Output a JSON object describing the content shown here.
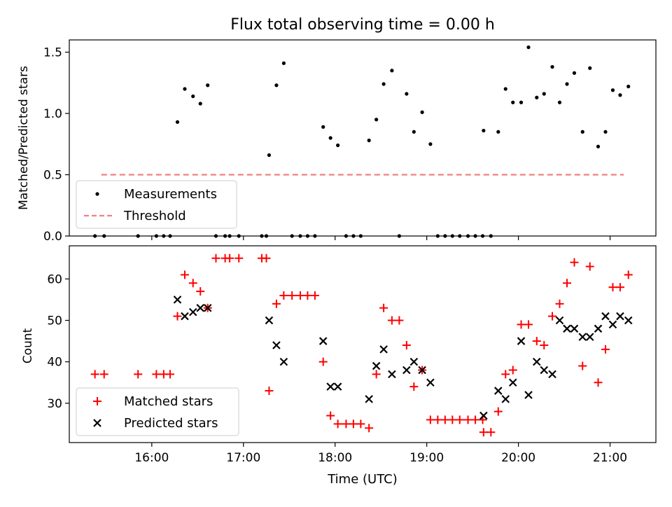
{
  "chart_data": {
    "title": "Flux total observing time = 0.00 h",
    "xlabel": "Time (UTC)",
    "x_unit": "hours UTC (decimal)",
    "xlim": [
      15.1,
      21.5
    ],
    "xticks": [
      {
        "value": 16,
        "label": "16:00"
      },
      {
        "value": 17,
        "label": "17:00"
      },
      {
        "value": 18,
        "label": "18:00"
      },
      {
        "value": 19,
        "label": "19:00"
      },
      {
        "value": 20,
        "label": "20:00"
      },
      {
        "value": 21,
        "label": "21:00"
      }
    ],
    "panels": [
      {
        "type": "scatter",
        "ylabel": "Matched/Predicted stars",
        "ylim": [
          0,
          1.6
        ],
        "yticks": [
          0,
          0.5,
          1.0,
          1.5
        ],
        "ytick_labels": [
          "0.0",
          "0.5",
          "1.0",
          "1.5"
        ],
        "legend": {
          "position": "lower-left",
          "entries": [
            {
              "label": "Measurements",
              "marker": "dot",
              "color": "#000000"
            },
            {
              "label": "Threshold",
              "marker": "dashed-line",
              "color": "#f08080"
            }
          ]
        },
        "threshold": {
          "value": 0.5,
          "x_start": 15.45,
          "x_end": 21.15,
          "color": "#f08080"
        },
        "series": [
          {
            "name": "Measurements",
            "color": "#000000",
            "points": [
              [
                15.38,
                0
              ],
              [
                15.48,
                0
              ],
              [
                15.85,
                0
              ],
              [
                16.05,
                0
              ],
              [
                16.13,
                0
              ],
              [
                16.2,
                0
              ],
              [
                16.28,
                0.93
              ],
              [
                16.36,
                1.2
              ],
              [
                16.45,
                1.14
              ],
              [
                16.53,
                1.08
              ],
              [
                16.61,
                1.23
              ],
              [
                16.7,
                0
              ],
              [
                16.8,
                0
              ],
              [
                16.85,
                0
              ],
              [
                16.95,
                0
              ],
              [
                17.2,
                0
              ],
              [
                17.25,
                0
              ],
              [
                17.28,
                0.66
              ],
              [
                17.36,
                1.23
              ],
              [
                17.44,
                1.41
              ],
              [
                17.53,
                0
              ],
              [
                17.62,
                0
              ],
              [
                17.7,
                0
              ],
              [
                17.78,
                0
              ],
              [
                17.87,
                0.89
              ],
              [
                17.95,
                0.8
              ],
              [
                18.03,
                0.74
              ],
              [
                18.12,
                0
              ],
              [
                18.2,
                0
              ],
              [
                18.28,
                0
              ],
              [
                18.37,
                0.78
              ],
              [
                18.45,
                0.95
              ],
              [
                18.53,
                1.24
              ],
              [
                18.62,
                1.35
              ],
              [
                18.7,
                0
              ],
              [
                18.78,
                1.16
              ],
              [
                18.86,
                0.85
              ],
              [
                18.95,
                1.01
              ],
              [
                19.04,
                0.75
              ],
              [
                19.12,
                0
              ],
              [
                19.2,
                0
              ],
              [
                19.28,
                0
              ],
              [
                19.36,
                0
              ],
              [
                19.45,
                0
              ],
              [
                19.53,
                0
              ],
              [
                19.61,
                0
              ],
              [
                19.62,
                0.86
              ],
              [
                19.7,
                0
              ],
              [
                19.78,
                0.85
              ],
              [
                19.86,
                1.2
              ],
              [
                19.94,
                1.09
              ],
              [
                20.03,
                1.09
              ],
              [
                20.11,
                1.54
              ],
              [
                20.2,
                1.13
              ],
              [
                20.28,
                1.16
              ],
              [
                20.37,
                1.38
              ],
              [
                20.45,
                1.09
              ],
              [
                20.53,
                1.24
              ],
              [
                20.61,
                1.33
              ],
              [
                20.7,
                0.85
              ],
              [
                20.78,
                1.37
              ],
              [
                20.87,
                0.73
              ],
              [
                20.95,
                0.85
              ],
              [
                21.03,
                1.19
              ],
              [
                21.11,
                1.15
              ],
              [
                21.2,
                1.22
              ]
            ]
          }
        ]
      },
      {
        "type": "scatter",
        "ylabel": "Count",
        "ylim": [
          20.5,
          68
        ],
        "yticks": [
          30,
          40,
          50,
          60
        ],
        "ytick_labels": [
          "30",
          "40",
          "50",
          "60"
        ],
        "legend": {
          "position": "lower-left",
          "entries": [
            {
              "label": "Matched stars",
              "marker": "plus",
              "color": "#ff0000"
            },
            {
              "label": "Predicted stars",
              "marker": "x",
              "color": "#000000"
            }
          ]
        },
        "series": [
          {
            "name": "Matched stars",
            "marker": "plus",
            "color": "#ff0000",
            "points": [
              [
                15.38,
                37
              ],
              [
                15.48,
                37
              ],
              [
                15.85,
                37
              ],
              [
                16.05,
                37
              ],
              [
                16.13,
                37
              ],
              [
                16.2,
                37
              ],
              [
                16.28,
                51
              ],
              [
                16.36,
                61
              ],
              [
                16.45,
                59
              ],
              [
                16.53,
                57
              ],
              [
                16.61,
                53
              ],
              [
                16.7,
                65
              ],
              [
                16.8,
                65
              ],
              [
                16.85,
                65
              ],
              [
                16.95,
                65
              ],
              [
                17.2,
                65
              ],
              [
                17.25,
                65
              ],
              [
                17.28,
                33
              ],
              [
                17.36,
                54
              ],
              [
                17.44,
                56
              ],
              [
                17.53,
                56
              ],
              [
                17.62,
                56
              ],
              [
                17.7,
                56
              ],
              [
                17.78,
                56
              ],
              [
                17.87,
                40
              ],
              [
                17.95,
                27
              ],
              [
                18.03,
                25
              ],
              [
                18.12,
                25
              ],
              [
                18.2,
                25
              ],
              [
                18.28,
                25
              ],
              [
                18.37,
                24
              ],
              [
                18.45,
                37
              ],
              [
                18.53,
                53
              ],
              [
                18.62,
                50
              ],
              [
                18.7,
                50
              ],
              [
                18.78,
                44
              ],
              [
                18.86,
                34
              ],
              [
                18.95,
                38
              ],
              [
                19.04,
                26
              ],
              [
                19.12,
                26
              ],
              [
                19.2,
                26
              ],
              [
                19.28,
                26
              ],
              [
                19.36,
                26
              ],
              [
                19.45,
                26
              ],
              [
                19.53,
                26
              ],
              [
                19.61,
                26
              ],
              [
                19.62,
                23
              ],
              [
                19.7,
                23
              ],
              [
                19.78,
                28
              ],
              [
                19.86,
                37
              ],
              [
                19.94,
                38
              ],
              [
                20.03,
                49
              ],
              [
                20.11,
                49
              ],
              [
                20.2,
                45
              ],
              [
                20.28,
                44
              ],
              [
                20.37,
                51
              ],
              [
                20.45,
                54
              ],
              [
                20.53,
                59
              ],
              [
                20.61,
                64
              ],
              [
                20.7,
                39
              ],
              [
                20.78,
                63
              ],
              [
                20.87,
                35
              ],
              [
                20.95,
                43
              ],
              [
                21.03,
                58
              ],
              [
                21.11,
                58
              ],
              [
                21.2,
                61
              ]
            ]
          },
          {
            "name": "Predicted stars",
            "marker": "x",
            "color": "#000000",
            "points": [
              [
                16.28,
                55
              ],
              [
                16.36,
                51
              ],
              [
                16.45,
                52
              ],
              [
                16.53,
                53
              ],
              [
                16.61,
                53
              ],
              [
                17.28,
                50
              ],
              [
                17.36,
                44
              ],
              [
                17.44,
                40
              ],
              [
                17.87,
                45
              ],
              [
                17.95,
                34
              ],
              [
                18.03,
                34
              ],
              [
                18.37,
                31
              ],
              [
                18.45,
                39
              ],
              [
                18.53,
                43
              ],
              [
                18.62,
                37
              ],
              [
                18.78,
                38
              ],
              [
                18.86,
                40
              ],
              [
                18.95,
                38
              ],
              [
                19.04,
                35
              ],
              [
                19.62,
                27
              ],
              [
                19.78,
                33
              ],
              [
                19.86,
                31
              ],
              [
                19.94,
                35
              ],
              [
                20.03,
                45
              ],
              [
                20.11,
                32
              ],
              [
                20.2,
                40
              ],
              [
                20.28,
                38
              ],
              [
                20.37,
                37
              ],
              [
                20.45,
                50
              ],
              [
                20.53,
                48
              ],
              [
                20.61,
                48
              ],
              [
                20.7,
                46
              ],
              [
                20.78,
                46
              ],
              [
                20.87,
                48
              ],
              [
                20.95,
                51
              ],
              [
                21.03,
                49
              ],
              [
                21.11,
                51
              ],
              [
                21.2,
                50
              ]
            ]
          }
        ]
      }
    ]
  }
}
